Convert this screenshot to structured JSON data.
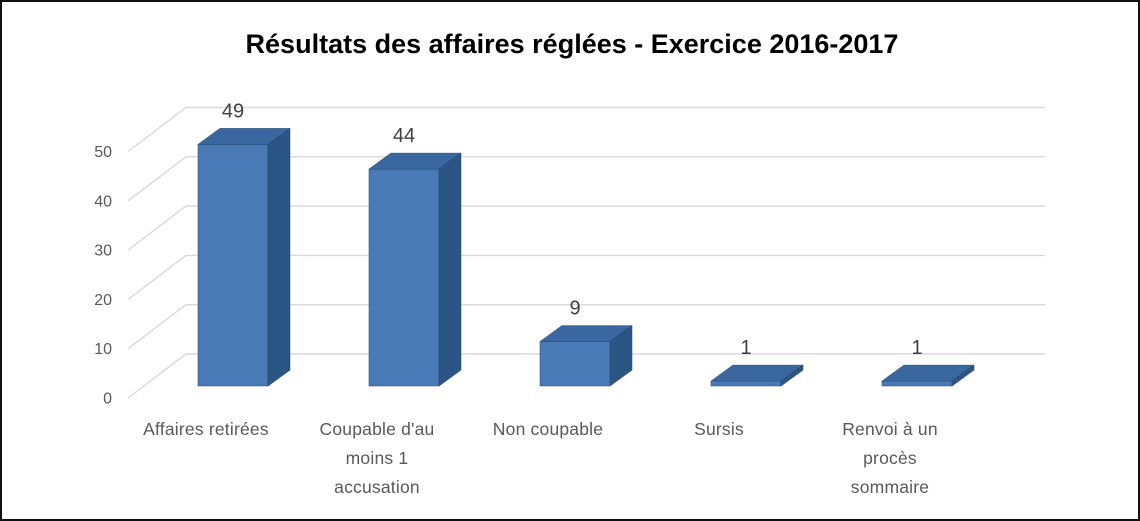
{
  "page": {
    "background_color": "#ffffff",
    "frame_border_color": "#111111"
  },
  "chart_data": {
    "type": "bar",
    "variant": "3d-clustered-column",
    "title": "Résultats des affaires réglées - Exercice 2016-2017",
    "categories": [
      "Affaires retirées",
      "Coupable d'au moins 1 accusation",
      "Non coupable",
      "Sursis",
      "Renvoi à un procès sommaire"
    ],
    "category_lines": [
      [
        "Affaires retirées"
      ],
      [
        "Coupable d'au",
        "moins 1",
        "accusation"
      ],
      [
        "Non coupable"
      ],
      [
        "Sursis"
      ],
      [
        "Renvoi à un",
        "procès",
        "sommaire"
      ]
    ],
    "values": [
      49,
      44,
      9,
      1,
      1
    ],
    "data_labels": [
      "49",
      "44",
      "9",
      "1",
      "1"
    ],
    "xlabel": "",
    "ylabel": "",
    "ylim": [
      0,
      50
    ],
    "yticks": [
      0,
      10,
      20,
      30,
      40,
      50
    ],
    "grid": true,
    "legend": "none",
    "colors": {
      "bar_front": "#4A7AB6",
      "bar_top": "#3A679F",
      "bar_side": "#2B5585",
      "bar_outline": "#24486F",
      "gridline": "#D9D9D9",
      "tick_text": "#595959",
      "category_text": "#595959",
      "value_label_text": "#3F3F3F",
      "title_text": "#171717"
    }
  }
}
